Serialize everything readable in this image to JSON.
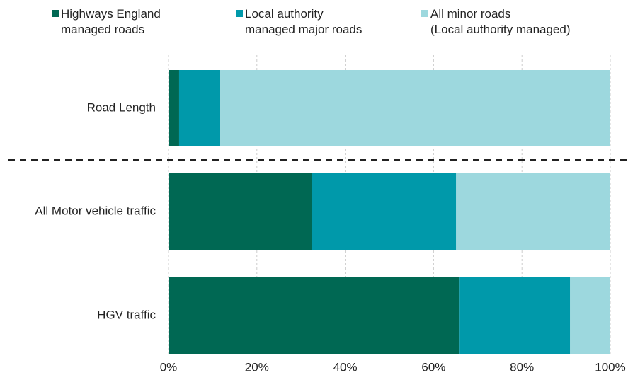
{
  "chart_data": {
    "type": "stacked-barh",
    "categories": [
      "Road Length",
      "All Motor vehicle traffic",
      "HGV traffic"
    ],
    "series": [
      {
        "name": "Highways England\nmanaged roads",
        "color": "#006853",
        "values": [
          2.4,
          32.5,
          65.9
        ]
      },
      {
        "name": "Local authority\nmanaged major roads",
        "color": "#0099aa",
        "values": [
          9.3,
          32.6,
          25.0
        ]
      },
      {
        "name": "All minor roads\n(Local authority managed)",
        "color": "#9dd8de",
        "values": [
          88.3,
          34.9,
          9.1
        ]
      }
    ],
    "xlim": [
      0,
      100
    ],
    "xticks": [
      {
        "value": 0,
        "label": "0%"
      },
      {
        "value": 20,
        "label": "20%"
      },
      {
        "value": 40,
        "label": "40%"
      },
      {
        "value": 60,
        "label": "60%"
      },
      {
        "value": 80,
        "label": "80%"
      },
      {
        "value": 100,
        "label": "100%"
      }
    ],
    "grid": true
  }
}
